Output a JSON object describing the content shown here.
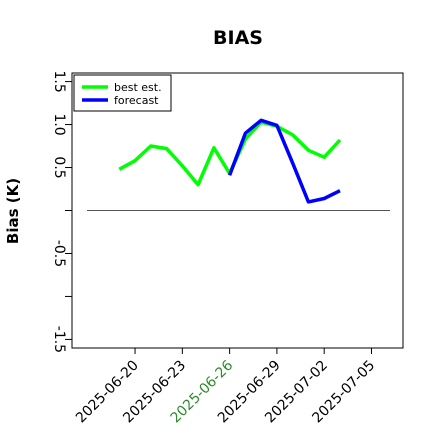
{
  "chart_data": {
    "type": "line",
    "title": "BIAS",
    "ylabel": "Bias (K)",
    "xlabel": "",
    "ylim": [
      -1.6,
      1.6
    ],
    "yticks": [
      {
        "value": 1.5,
        "label": "1.5"
      },
      {
        "value": 1.0,
        "label": "1.0"
      },
      {
        "value": 0.5,
        "label": "0.5"
      },
      {
        "value": 0.0,
        "label": ""
      },
      {
        "value": -0.5,
        "label": "-0.5"
      },
      {
        "value": -1.0,
        "label": ""
      },
      {
        "value": -1.5,
        "label": "-1.5"
      }
    ],
    "xlim": [
      "2025-06-16",
      "2025-07-07"
    ],
    "xticks": [
      {
        "value": "2025-06-20",
        "label": "2025-06-20",
        "color": "#000000"
      },
      {
        "value": "2025-06-23",
        "label": "2025-06-23",
        "color": "#000000"
      },
      {
        "value": "2025-06-26",
        "label": "2025-06-26",
        "color": "#2e8b2e"
      },
      {
        "value": "2025-06-29",
        "label": "2025-06-29",
        "color": "#000000"
      },
      {
        "value": "2025-07-02",
        "label": "2025-07-02",
        "color": "#000000"
      },
      {
        "value": "2025-07-05",
        "label": "2025-07-05",
        "color": "#000000"
      }
    ],
    "reference_line": 0.0,
    "grid": false,
    "legend_position": "top-left",
    "series": [
      {
        "name": "best est.",
        "color": "#00ff00",
        "points": [
          {
            "x": "2025-06-19",
            "y": 0.48
          },
          {
            "x": "2025-06-20",
            "y": 0.58
          },
          {
            "x": "2025-06-21",
            "y": 0.75
          },
          {
            "x": "2025-06-22",
            "y": 0.72
          },
          {
            "x": "2025-06-23",
            "y": 0.52
          },
          {
            "x": "2025-06-24",
            "y": 0.3
          },
          {
            "x": "2025-06-25",
            "y": 0.73
          },
          {
            "x": "2025-06-26",
            "y": 0.43
          },
          {
            "x": "2025-06-27",
            "y": 0.83
          },
          {
            "x": "2025-06-28",
            "y": 1.03
          },
          {
            "x": "2025-06-29",
            "y": 0.98
          },
          {
            "x": "2025-06-30",
            "y": 0.88
          },
          {
            "x": "2025-07-01",
            "y": 0.7
          },
          {
            "x": "2025-07-02",
            "y": 0.62
          },
          {
            "x": "2025-07-03",
            "y": 0.82
          }
        ]
      },
      {
        "name": "forecast",
        "color": "#0000ff",
        "points": [
          {
            "x": "2025-06-26",
            "y": 0.41
          },
          {
            "x": "2025-06-27",
            "y": 0.9
          },
          {
            "x": "2025-06-28",
            "y": 1.05
          },
          {
            "x": "2025-06-29",
            "y": 0.99
          },
          {
            "x": "2025-06-30",
            "y": 0.55
          },
          {
            "x": "2025-07-01",
            "y": 0.1
          },
          {
            "x": "2025-07-02",
            "y": 0.14
          },
          {
            "x": "2025-07-03",
            "y": 0.23
          }
        ]
      }
    ]
  }
}
